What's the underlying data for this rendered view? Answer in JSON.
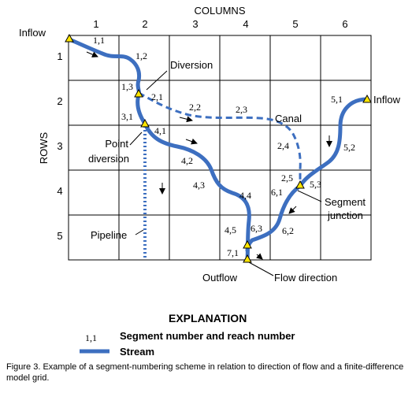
{
  "grid": {
    "columns_label": "COLUMNS",
    "rows_label": "ROWS",
    "column_numbers": [
      "1",
      "2",
      "3",
      "4",
      "5",
      "6"
    ],
    "row_numbers": [
      "1",
      "2",
      "3",
      "4",
      "5"
    ]
  },
  "labels": {
    "inflow_left": "Inflow",
    "inflow_right": "Inflow",
    "diversion": "Diversion",
    "canal": "Canal",
    "point_diversion_1": "Point",
    "point_diversion_2": "diversion",
    "pipeline": "Pipeline",
    "segment_junction_1": "Segment",
    "segment_junction_2": "junction",
    "outflow": "Outflow",
    "flow_direction": "Flow direction"
  },
  "reaches": {
    "r11": "1,1",
    "r12": "1,2",
    "r13": "1,3",
    "r21": "2,1",
    "r22": "2,2",
    "r23": "2,3",
    "r24": "2,4",
    "r25": "2,5",
    "r31": "3,1",
    "r41": "4,1",
    "r42": "4,2",
    "r43": "4,3",
    "r44": "4,4",
    "r45": "4,5",
    "r51": "5,1",
    "r52": "5,2",
    "r53": "5,3",
    "r61": "6,1",
    "r62": "6,2",
    "r63": "6,3",
    "r71": "7,1"
  },
  "explanation": {
    "title": "EXPLANATION",
    "sample_reach": "1,1",
    "segment_desc": "Segment number and reach number",
    "stream_desc": "Stream"
  },
  "caption": "Figure 3. Example of a segment-numbering scheme in relation to direction of flow and a finite-difference model grid.",
  "colors": {
    "stream": "#3d6fc0",
    "node_fill": "#ffe600",
    "grid": "#000000"
  }
}
